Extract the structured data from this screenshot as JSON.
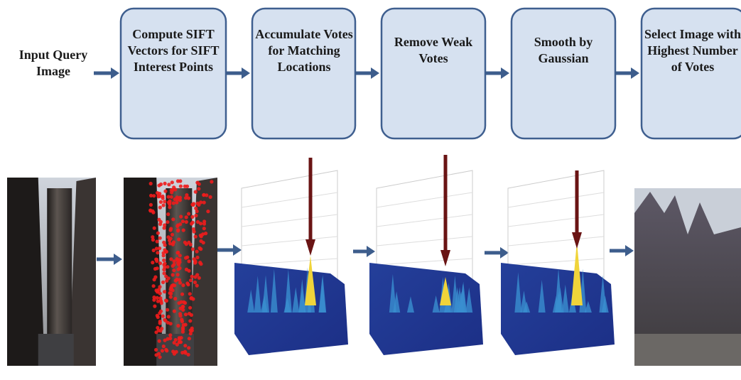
{
  "nodes": [
    {
      "label": [
        "Input Query",
        "Image"
      ]
    },
    {
      "label": [
        "Compute SIFT",
        "Vectors for SIFT",
        "Interest Points"
      ]
    },
    {
      "label": [
        "Accumulate Votes",
        "for Matching",
        "Locations"
      ]
    },
    {
      "label": [
        "Remove Weak",
        "Votes"
      ]
    },
    {
      "label": [
        "Smooth by",
        "Gaussian"
      ]
    },
    {
      "label": [
        "Select Image with",
        "Highest Number",
        "of Votes"
      ]
    }
  ]
}
